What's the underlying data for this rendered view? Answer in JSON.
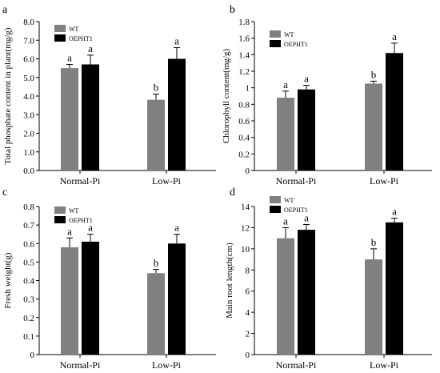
{
  "colors": {
    "wt": "#808080",
    "oepht1": "#000000",
    "axis": "#000000"
  },
  "chart_data": [
    {
      "panel": "a",
      "type": "bar",
      "ylabel": "Total phosphate content in plant(mg/g)",
      "categories": [
        "Normal-Pi",
        "Low-Pi"
      ],
      "ylim": [
        0,
        8
      ],
      "yticks": [
        "0.0",
        "1.0",
        "2.0",
        "3.0",
        "4.0",
        "5.0",
        "6.0",
        "7.0",
        "8.0"
      ],
      "series": [
        {
          "name": "WT",
          "values": [
            5.5,
            3.8
          ],
          "errors": [
            0.2,
            0.3
          ],
          "letters": [
            "a",
            "b"
          ]
        },
        {
          "name": "OEPHT1",
          "values": [
            5.7,
            6.0
          ],
          "errors": [
            0.5,
            0.6
          ],
          "letters": [
            "a",
            "a"
          ]
        }
      ]
    },
    {
      "panel": "b",
      "type": "bar",
      "ylabel": "Chlorophyll content(mg/g)",
      "categories": [
        "Normal-Pi",
        "Low-Pi"
      ],
      "ylim": [
        0,
        1.8
      ],
      "yticks": [
        "0",
        "0.2",
        "0.4",
        "0.6",
        "0.8",
        "1",
        "1.2",
        "1.4",
        "1.6",
        "1.8"
      ],
      "series": [
        {
          "name": "WT",
          "values": [
            0.88,
            1.05
          ],
          "errors": [
            0.08,
            0.03
          ],
          "letters": [
            "a",
            "b"
          ]
        },
        {
          "name": "OEPHT1",
          "values": [
            0.98,
            1.42
          ],
          "errors": [
            0.05,
            0.12
          ],
          "letters": [
            "a",
            "a"
          ]
        }
      ]
    },
    {
      "panel": "c",
      "type": "bar",
      "ylabel": "Fresh weight(g)",
      "categories": [
        "Normal-Pi",
        "Low-Pi"
      ],
      "ylim": [
        0,
        0.8
      ],
      "yticks": [
        "0",
        "0.1",
        "0.2",
        "0.3",
        "0.4",
        "0.5",
        "0.6",
        "0.7",
        "0.8"
      ],
      "series": [
        {
          "name": "WT",
          "values": [
            0.58,
            0.44
          ],
          "errors": [
            0.05,
            0.02
          ],
          "letters": [
            "a",
            "b"
          ]
        },
        {
          "name": "OEPHT1",
          "values": [
            0.61,
            0.6
          ],
          "errors": [
            0.04,
            0.05
          ],
          "letters": [
            "a",
            "a"
          ]
        }
      ]
    },
    {
      "panel": "d",
      "type": "bar",
      "ylabel": "Main root length(cm)",
      "categories": [
        "Normal-Pi",
        "Low-Pi"
      ],
      "ylim": [
        0,
        14
      ],
      "yticks": [
        "0",
        "2",
        "4",
        "6",
        "8",
        "10",
        "12",
        "14"
      ],
      "series": [
        {
          "name": "WT",
          "values": [
            11.0,
            9.0
          ],
          "errors": [
            1.0,
            1.0
          ],
          "letters": [
            "a",
            "b"
          ]
        },
        {
          "name": "OEPHT1",
          "values": [
            11.8,
            12.5
          ],
          "errors": [
            0.5,
            0.4
          ],
          "letters": [
            "a",
            "a"
          ]
        }
      ]
    }
  ]
}
